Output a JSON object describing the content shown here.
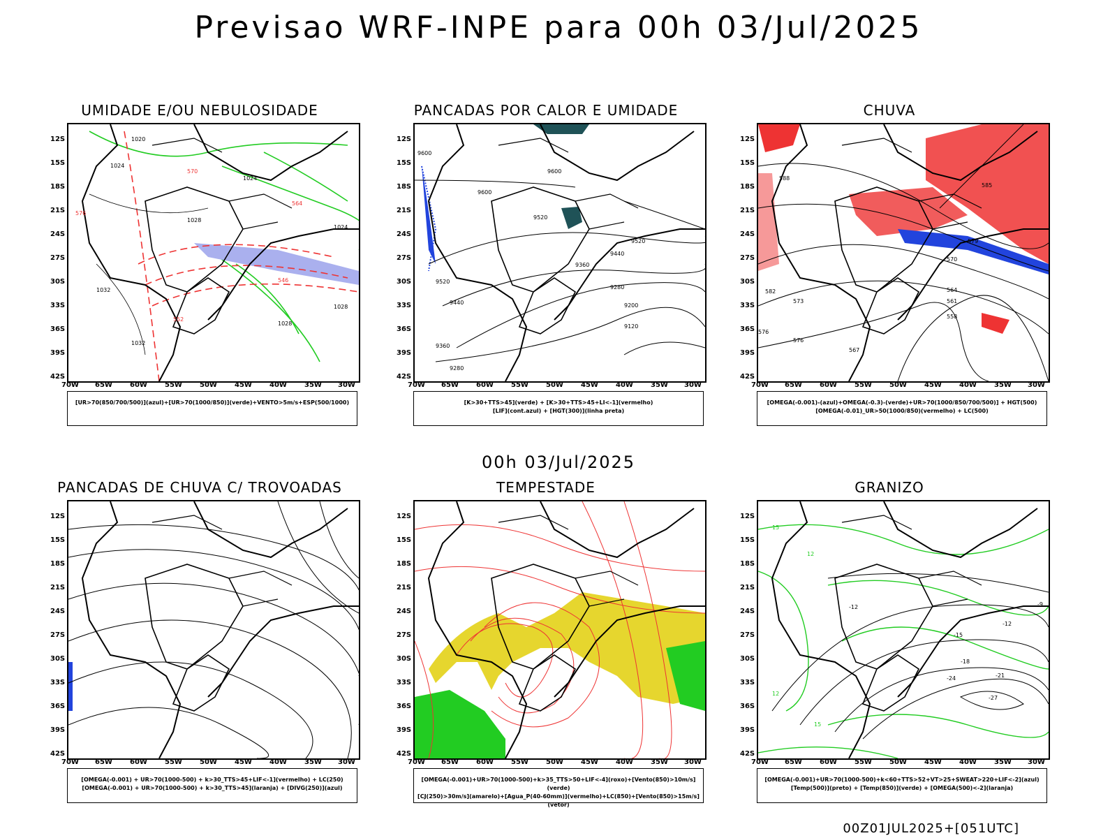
{
  "page": {
    "title": "Previsao WRF-INPE  para 00h 03/Jul/2025",
    "mid_title": "00h 03/Jul/2025",
    "footer": "00Z01JUL2025+[051UTC]"
  },
  "axes": {
    "lat_labels": [
      "12S",
      "15S",
      "18S",
      "21S",
      "24S",
      "27S",
      "30S",
      "33S",
      "36S",
      "39S",
      "42S"
    ],
    "lon_labels": [
      "70W",
      "65W",
      "60W",
      "55W",
      "50W",
      "45W",
      "40W",
      "35W",
      "30W"
    ]
  },
  "panels": [
    {
      "id": "umidade",
      "title": "UMIDADE E/OU NEBULOSIDADE",
      "legend": [
        "[UR>70(850/700/500)](azul)+[UR>70(1000/850)](verde)+VENTO>5m/s+ESP(500/1000)"
      ],
      "contour_labels": [
        "1020",
        "1024",
        "1024",
        "1028",
        "1028",
        "1032",
        "1032",
        "1024",
        "1028",
        "564",
        "570",
        "576",
        "546",
        "552"
      ],
      "colors": {
        "green": "#22cc22",
        "red": "#ee3333",
        "blue": "#aab0ee"
      }
    },
    {
      "id": "pancadas-calor",
      "title": "PANCADAS POR CALOR E UMIDADE",
      "legend": [
        "[K>30+TTS>45](verde) + [K>30+TTS>45+LI<-1](vermelho)",
        "[LIF](cont.azul) + [HGT(300)](linha preta)"
      ],
      "contour_labels": [
        "9600",
        "9600",
        "9600",
        "9520",
        "9520",
        "9520",
        "9440",
        "9440",
        "9360",
        "9360",
        "9280",
        "9280",
        "9200",
        "9120"
      ],
      "colors": {
        "teal": "#1f5257",
        "blue": "#2244dd"
      }
    },
    {
      "id": "chuva",
      "title": "CHUVA",
      "legend": [
        "[OMEGA(-0.001)-(azul)+OMEGA(-0.3)-(verde)+UR>70(1000/850/700/500)] + HGT(500)",
        "[OMEGA(-0.01)_UR>50(1000/850)(vermelho) + LC(500)"
      ],
      "contour_labels": [
        "588",
        "582",
        "576",
        "573",
        "570",
        "567",
        "564",
        "561",
        "558",
        "576",
        "579",
        "585"
      ],
      "colors": {
        "red": "#ee3333",
        "blue": "#2244dd"
      }
    },
    {
      "id": "pancadas-trovoadas",
      "title": "PANCADAS DE CHUVA C/ TROVOADAS",
      "legend": [
        "[OMEGA(-0.001) + UR>70(1000-500) + k>30_TTS>45+LIF<-1](vermelho) + LC(250)",
        "[OMEGA(-0.001) + UR>70(1000-500) + k>30_TTS>45](laranja) + [DIVG(250)](azul)"
      ],
      "contour_labels": [],
      "colors": {
        "blue": "#2244dd",
        "orange": "#ff9900"
      }
    },
    {
      "id": "tempestade",
      "title": "TEMPESTADE",
      "legend": [
        "[OMEGA(-0.001)+UR>70(1000-500)+k>35_TTS>50+LIF<-4](roxo)+[Vento(850)>10m/s](verde)",
        "[CJ(250)>30m/s](amarelo)+[Agua_P(40-60mm)](vermelho)+LC(850)+[Vento(850)>15m/s](vetor)"
      ],
      "contour_labels": [],
      "colors": {
        "yellow": "#e6d62e",
        "green": "#22cc22",
        "red": "#ee3333"
      }
    },
    {
      "id": "granizo",
      "title": "GRANIZO",
      "legend": [
        "[OMEGA(-0.001)+UR>70(1000-500)+k<60+TTS>52+VT>25+SWEAT>220+LIF<-2](azul)",
        "[Temp(500)](preto) + [Temp(850)](verde) + [OMEGA(500)<-2](laranja)"
      ],
      "contour_labels": [
        "-9",
        "-12",
        "-12",
        "-15",
        "-18",
        "-21",
        "-24",
        "-27",
        "12",
        "15",
        "15",
        "12"
      ],
      "colors": {
        "green": "#22cc22"
      }
    }
  ]
}
